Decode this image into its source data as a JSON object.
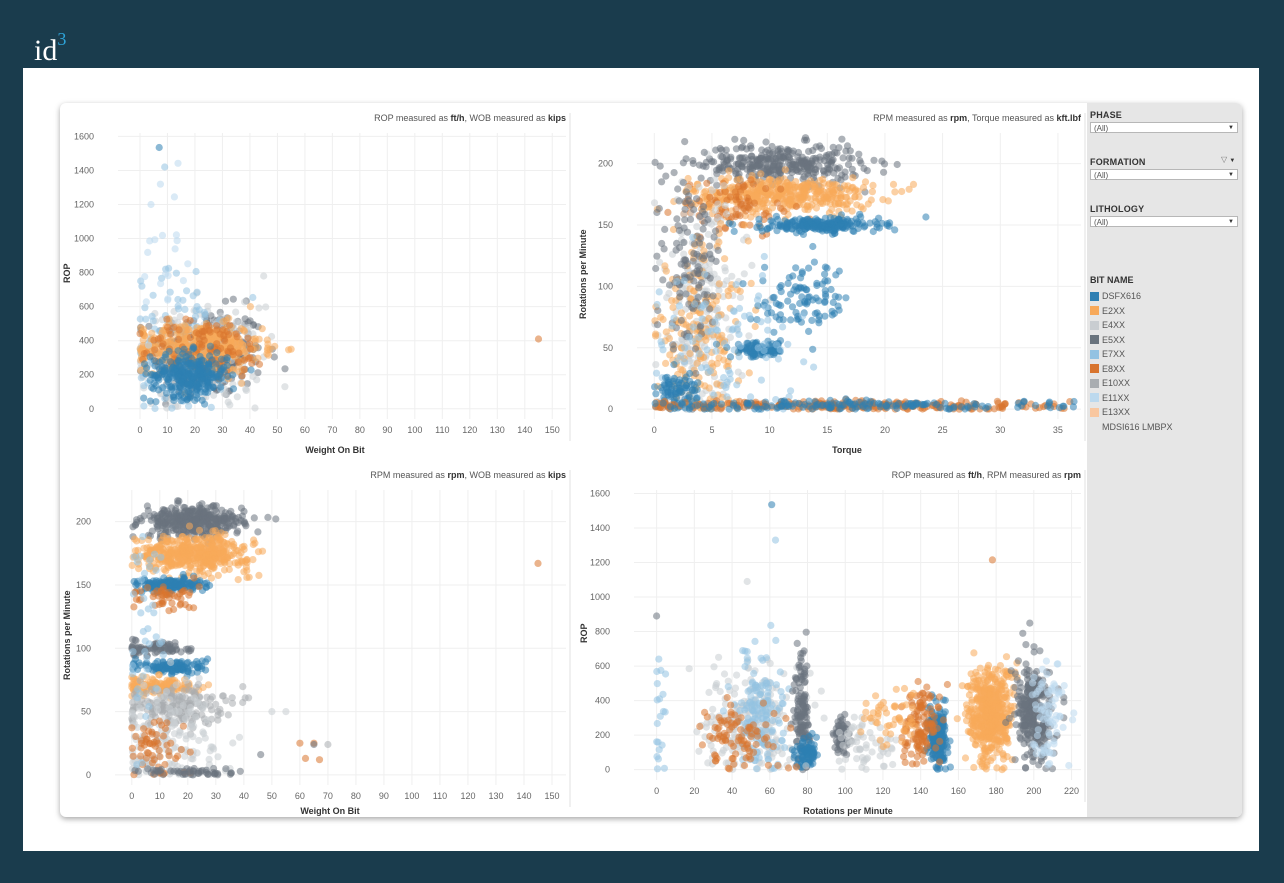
{
  "brand": {
    "logo_text": "id",
    "logo_sup": "3"
  },
  "filters": [
    {
      "title": "PHASE",
      "value": "(All)"
    },
    {
      "title": "FORMATION",
      "value": "(All)"
    },
    {
      "title": "LITHOLOGY",
      "value": "(All)"
    }
  ],
  "legend": {
    "title": "BIT NAME",
    "items": [
      {
        "name": "DSFX616",
        "color": "#2e7fb3"
      },
      {
        "name": "E2XX",
        "color": "#f7a95a"
      },
      {
        "name": "E4XX",
        "color": "#c9cdd1"
      },
      {
        "name": "E5XX",
        "color": "#69737d"
      },
      {
        "name": "E7XX",
        "color": "#93c2e2"
      },
      {
        "name": "E8XX",
        "color": "#d8742e"
      },
      {
        "name": "E10XX",
        "color": "#a9adb1"
      },
      {
        "name": "E11XX",
        "color": "#bcd9ee"
      },
      {
        "name": "E13XX",
        "color": "#f9c7a0"
      },
      {
        "name": "MDSI616 LMBPX",
        "color": ""
      }
    ]
  },
  "charts": [
    {
      "caption_pre": "ROP measured as ",
      "caption_u1": "ft/h",
      "caption_mid": ", WOB measured as ",
      "caption_u2": "kips",
      "xlabel": "Weight On Bit",
      "ylabel": "ROP"
    },
    {
      "caption_pre": "RPM measured as ",
      "caption_u1": "rpm",
      "caption_mid": ", Torque measured as ",
      "caption_u2": "kft.lbf",
      "xlabel": "Torque",
      "ylabel": "Rotations per Minute"
    },
    {
      "caption_pre": "RPM measured as ",
      "caption_u1": "rpm",
      "caption_mid": ", WOB measured as ",
      "caption_u2": "kips",
      "xlabel": "Weight On Bit",
      "ylabel": "Rotations per Minute"
    },
    {
      "caption_pre": "ROP measured as ",
      "caption_u1": "ft/h",
      "caption_mid": ", RPM measured as ",
      "caption_u2": "rpm",
      "xlabel": "Rotations per Minute",
      "ylabel": "ROP"
    }
  ],
  "chart_data": [
    {
      "type": "scatter",
      "xlabel": "Weight On Bit",
      "ylabel": "ROP",
      "xlim": [
        -8,
        155
      ],
      "ylim": [
        -60,
        1620
      ],
      "xticks": [
        0,
        10,
        20,
        30,
        40,
        50,
        60,
        70,
        80,
        90,
        100,
        110,
        120,
        130,
        140,
        150
      ],
      "yticks": [
        0,
        200,
        400,
        600,
        800,
        1000,
        1200,
        1400,
        1600
      ],
      "clusters": [
        {
          "series": "E5XX",
          "cx": 25,
          "cy": 330,
          "sx": 10,
          "sy": 130,
          "n": 260
        },
        {
          "series": "E4XX",
          "cx": 22,
          "cy": 300,
          "sx": 11,
          "sy": 150,
          "n": 200
        },
        {
          "series": "E7XX",
          "cx": 14,
          "cy": 360,
          "sx": 9,
          "sy": 220,
          "n": 120
        },
        {
          "series": "E2XX",
          "cx": 22,
          "cy": 360,
          "sx": 11,
          "sy": 70,
          "n": 420
        },
        {
          "series": "E8XX",
          "cx": 24,
          "cy": 340,
          "sx": 12,
          "sy": 90,
          "n": 120
        },
        {
          "series": "DSFX616",
          "cx": 18,
          "cy": 200,
          "sx": 7,
          "sy": 65,
          "n": 300
        },
        {
          "series": "E11XX",
          "cx": 10,
          "cy": 900,
          "sx": 5,
          "sy": 300,
          "n": 20
        }
      ],
      "points": [
        {
          "series": "E8XX",
          "x": 145,
          "y": 410
        },
        {
          "series": "DSFX616",
          "x": 7,
          "y": 1535
        },
        {
          "series": "E7XX",
          "x": 9,
          "y": 1420
        },
        {
          "series": "E11XX",
          "x": 4,
          "y": 1200
        },
        {
          "series": "E4XX",
          "x": 45,
          "y": 780
        }
      ]
    },
    {
      "type": "scatter",
      "xlabel": "Torque",
      "ylabel": "Rotations per Minute",
      "xlim": [
        -1.5,
        37
      ],
      "ylim": [
        -8,
        225
      ],
      "xticks": [
        0,
        5,
        10,
        15,
        20,
        25,
        30,
        35
      ],
      "yticks": [
        0,
        50,
        100,
        150,
        200
      ],
      "clusters": [
        {
          "series": "E5XX",
          "cx": 11,
          "cy": 200,
          "sx": 3.5,
          "sy": 8,
          "n": 320
        },
        {
          "series": "E2XX",
          "cx": 11,
          "cy": 175,
          "sx": 4,
          "sy": 7,
          "n": 420
        },
        {
          "series": "E8XX",
          "cx": 7,
          "cy": 165,
          "sx": 2.5,
          "sy": 12,
          "n": 80
        },
        {
          "series": "DSFX616",
          "cx": 14.5,
          "cy": 150,
          "sx": 2.5,
          "sy": 3,
          "n": 220
        },
        {
          "series": "E4XX",
          "cx": 4,
          "cy": 80,
          "sx": 2,
          "sy": 50,
          "n": 220
        },
        {
          "series": "E2XX",
          "cx": 4,
          "cy": 60,
          "sx": 2,
          "sy": 40,
          "n": 200
        },
        {
          "series": "DSFX616",
          "cx": 9,
          "cy": 48,
          "sx": 1.2,
          "sy": 3,
          "n": 80
        },
        {
          "series": "DSFX616",
          "cx": 13,
          "cy": 88,
          "sx": 2,
          "sy": 15,
          "n": 100
        },
        {
          "series": "E5XX",
          "cx": 3,
          "cy": 120,
          "sx": 1.5,
          "sy": 35,
          "n": 120
        },
        {
          "series": "E7XX",
          "cx": 6,
          "cy": 50,
          "sx": 3,
          "sy": 30,
          "n": 100
        },
        {
          "series": "DSFX616",
          "cx": 2,
          "cy": 15,
          "sx": 1,
          "sy": 8,
          "n": 80
        },
        {
          "series": "E8XX",
          "cx": 17,
          "cy": 3,
          "sx": 9,
          "sy": 2,
          "n": 260
        },
        {
          "series": "DSFX616",
          "cx": 18,
          "cy": 3,
          "sx": 9,
          "sy": 2,
          "n": 160
        }
      ],
      "points": []
    },
    {
      "type": "scatter",
      "xlabel": "Weight On Bit",
      "ylabel": "Rotations per Minute",
      "xlim": [
        -6,
        155
      ],
      "ylim": [
        -8,
        225
      ],
      "xticks": [
        0,
        10,
        20,
        30,
        40,
        50,
        60,
        70,
        80,
        90,
        100,
        110,
        120,
        130,
        140,
        150
      ],
      "yticks": [
        0,
        50,
        100,
        150,
        200
      ],
      "clusters": [
        {
          "series": "E5XX",
          "cx": 22,
          "cy": 200,
          "sx": 9,
          "sy": 6,
          "n": 360
        },
        {
          "series": "E2XX",
          "cx": 22,
          "cy": 175,
          "sx": 10,
          "sy": 7,
          "n": 420
        },
        {
          "series": "DSFX616",
          "cx": 14,
          "cy": 150,
          "sx": 6,
          "sy": 2.5,
          "n": 160
        },
        {
          "series": "E8XX",
          "cx": 12,
          "cy": 140,
          "sx": 6,
          "sy": 6,
          "n": 50
        },
        {
          "series": "E5XX",
          "cx": 10,
          "cy": 100,
          "sx": 6,
          "sy": 3,
          "n": 70
        },
        {
          "series": "DSFX616",
          "cx": 15,
          "cy": 85,
          "sx": 6,
          "sy": 3,
          "n": 110
        },
        {
          "series": "E2XX",
          "cx": 10,
          "cy": 70,
          "sx": 7,
          "sy": 4,
          "n": 110
        },
        {
          "series": "E10XX",
          "cx": 15,
          "cy": 55,
          "sx": 9,
          "sy": 8,
          "n": 180
        },
        {
          "series": "E4XX",
          "cx": 12,
          "cy": 30,
          "sx": 10,
          "sy": 20,
          "n": 160
        },
        {
          "series": "E8XX",
          "cx": 8,
          "cy": 20,
          "sx": 6,
          "sy": 15,
          "n": 60
        },
        {
          "series": "E5XX",
          "cx": 20,
          "cy": 2,
          "sx": 10,
          "sy": 2,
          "n": 50
        },
        {
          "series": "E7XX",
          "cx": 5,
          "cy": 120,
          "sx": 3,
          "sy": 40,
          "n": 40
        }
      ],
      "points": [
        {
          "series": "E8XX",
          "x": 145,
          "y": 167
        },
        {
          "series": "E8XX",
          "x": 60,
          "y": 25
        },
        {
          "series": "E8XX",
          "x": 62,
          "y": 13
        },
        {
          "series": "E8XX",
          "x": 65,
          "y": 25
        },
        {
          "series": "E8XX",
          "x": 67,
          "y": 12
        },
        {
          "series": "E5XX",
          "x": 65,
          "y": 24
        },
        {
          "series": "E10XX",
          "x": 70,
          "y": 24
        },
        {
          "series": "E4XX",
          "x": 50,
          "y": 50
        },
        {
          "series": "E4XX",
          "x": 55,
          "y": 50
        },
        {
          "series": "E5XX",
          "x": 46,
          "y": 16
        }
      ]
    },
    {
      "type": "scatter",
      "xlabel": "Rotations per Minute",
      "ylabel": "ROP",
      "xlim": [
        -12,
        225
      ],
      "ylim": [
        -60,
        1620
      ],
      "xticks": [
        0,
        20,
        40,
        60,
        80,
        100,
        120,
        140,
        160,
        180,
        200,
        220
      ],
      "yticks": [
        0,
        200,
        400,
        600,
        800,
        1000,
        1200,
        1400,
        1600
      ],
      "clusters": [
        {
          "series": "E2XX",
          "cx": 177,
          "cy": 320,
          "sx": 6,
          "sy": 140,
          "n": 460
        },
        {
          "series": "E5XX",
          "cx": 200,
          "cy": 320,
          "sx": 5,
          "sy": 140,
          "n": 300
        },
        {
          "series": "E11XX",
          "cx": 208,
          "cy": 340,
          "sx": 4,
          "sy": 150,
          "n": 80
        },
        {
          "series": "DSFX616",
          "cx": 149,
          "cy": 180,
          "sx": 2.5,
          "sy": 80,
          "n": 220
        },
        {
          "series": "E8XX",
          "cx": 140,
          "cy": 260,
          "sx": 5,
          "sy": 120,
          "n": 120
        },
        {
          "series": "E4XX",
          "cx": 50,
          "cy": 280,
          "sx": 12,
          "sy": 160,
          "n": 220
        },
        {
          "series": "E7XX",
          "cx": 55,
          "cy": 330,
          "sx": 6,
          "sy": 160,
          "n": 160
        },
        {
          "series": "E5XX",
          "cx": 77,
          "cy": 350,
          "sx": 2,
          "sy": 180,
          "n": 120
        },
        {
          "series": "DSFX616",
          "cx": 80,
          "cy": 100,
          "sx": 3,
          "sy": 40,
          "n": 80
        },
        {
          "series": "E8XX",
          "cx": 45,
          "cy": 200,
          "sx": 12,
          "sy": 100,
          "n": 90
        },
        {
          "series": "E5XX",
          "cx": 98,
          "cy": 180,
          "sx": 2,
          "sy": 60,
          "n": 60
        },
        {
          "series": "E4XX",
          "cx": 110,
          "cy": 150,
          "sx": 10,
          "sy": 80,
          "n": 60
        },
        {
          "series": "E2XX",
          "cx": 125,
          "cy": 300,
          "sx": 8,
          "sy": 90,
          "n": 50
        },
        {
          "series": "E7XX",
          "cx": 2,
          "cy": 350,
          "sx": 2,
          "sy": 150,
          "n": 20
        }
      ],
      "points": [
        {
          "series": "DSFX616",
          "x": 61,
          "y": 1535
        },
        {
          "series": "E7XX",
          "x": 63,
          "y": 1330
        },
        {
          "series": "E8XX",
          "x": 178,
          "y": 1215
        },
        {
          "series": "E4XX",
          "x": 48,
          "y": 1090
        },
        {
          "series": "E5XX",
          "x": 0,
          "y": 890
        }
      ]
    }
  ]
}
